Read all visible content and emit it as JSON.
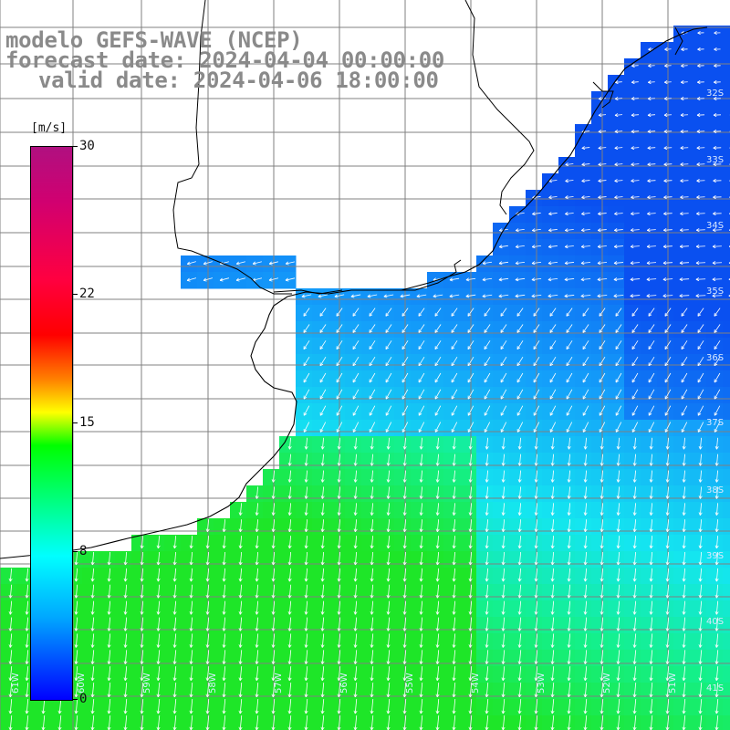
{
  "title": {
    "line1": "modelo GEFS-WAVE (NCEP)",
    "line2": "forecast date: 2024-04-04 00:00:00",
    "line3": "valid date: 2024-04-06 18:00:00"
  },
  "colorbar": {
    "unit": "[m/s]",
    "ticks": [
      "30",
      "22",
      "15",
      "8",
      "0"
    ],
    "tick_values": [
      30,
      22,
      15,
      8,
      0
    ],
    "min": 0,
    "max": 30
  },
  "axes": {
    "lat_labels": [
      "32S",
      "33S",
      "34S",
      "35S",
      "36S",
      "37S",
      "38S",
      "39S",
      "40S",
      "41S"
    ],
    "lon_labels": [
      "61W",
      "60W",
      "59W",
      "58W",
      "57W",
      "56W",
      "55W",
      "54W",
      "53W",
      "52W",
      "51W"
    ]
  },
  "field": {
    "variable": "wind speed and direction",
    "colors": {
      "ocean_low": "#0a5cf0",
      "ocean_mid": "#17c8f0",
      "ocean_high": "#14e650",
      "land": "#ffffff",
      "grid": "#888888",
      "arrows": "#ffffff"
    }
  }
}
